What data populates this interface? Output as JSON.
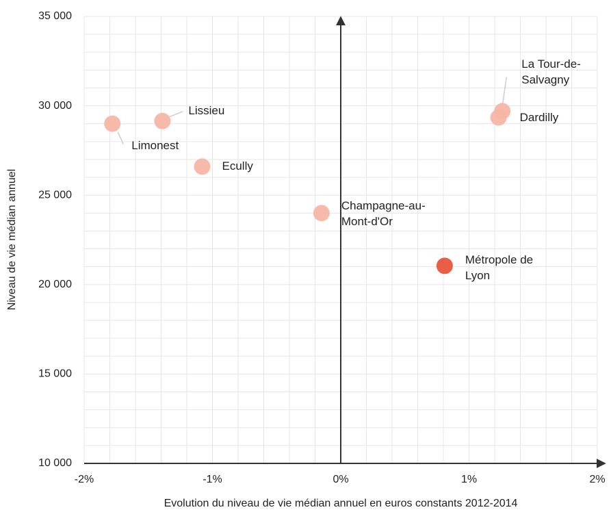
{
  "chart_data": {
    "type": "scatter",
    "xlabel": "Evolution du niveau de vie médian annuel en euros constants 2012-2014",
    "ylabel": "Niveau de vie médian annuel",
    "series": [
      {
        "name": null,
        "labels": [
          "Limonest",
          "Lissieu",
          "Ecully",
          "Champagne-au-\nMont-d'Or",
          "Métropole de\nLyon",
          "La Tour-de-\nSalvagny",
          "Dardilly"
        ],
        "x": [
          -1.78,
          -1.39,
          -1.08,
          -0.15,
          0.81,
          1.26,
          1.23
        ],
        "values": [
          29000,
          29150,
          26600,
          24000,
          21050,
          29700,
          29350
        ],
        "colors": [
          "#f5b5a5",
          "#f5b5a5",
          "#f5b5a5",
          "#f5b5a5",
          "#e8553a",
          "#f5b5a5",
          "#f5b5a5"
        ]
      }
    ],
    "xlim": [
      -2,
      2
    ],
    "xticks": [
      {
        "value": -2,
        "label": "-2%"
      },
      {
        "value": -1,
        "label": "-1%"
      },
      {
        "value": 0,
        "label": "0%"
      },
      {
        "value": 1,
        "label": "1%"
      },
      {
        "value": 2,
        "label": "2%"
      }
    ],
    "ylim": [
      10000,
      35000
    ],
    "yticks": [
      {
        "value": 10000,
        "label": "10 000"
      },
      {
        "value": 15000,
        "label": "15 000"
      },
      {
        "value": 20000,
        "label": "20 000"
      },
      {
        "value": 25000,
        "label": "25 000"
      },
      {
        "value": 30000,
        "label": "30 000"
      },
      {
        "value": 35000,
        "label": "35 000"
      }
    ],
    "grid": true,
    "minor_divisions": 5
  }
}
